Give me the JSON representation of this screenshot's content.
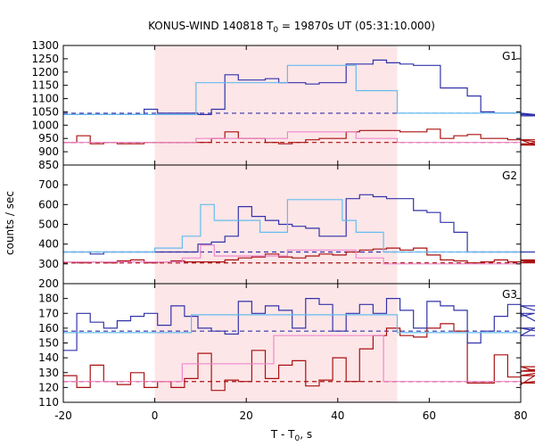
{
  "chart_data": {
    "type": "line",
    "title_main": "KONUS-WIND 140818 T",
    "title_sub": "0",
    "title_rest": " = 19870s UT (05:31:10.000)",
    "xlabel_main": "T - T",
    "xlabel_sub": "0",
    "xlabel_rest": ", s",
    "ylabel": "counts / sec",
    "xlim": [
      -20,
      80
    ],
    "xticks": [
      -20,
      0,
      20,
      40,
      60,
      80
    ],
    "highlight_region": [
      0,
      53
    ],
    "colors": {
      "raw_g1_g2": "#3333aa",
      "raw_sum_g1_g2": "#aa1111",
      "fit": "#66bbee",
      "fit_sum": "#ee88cc",
      "background": "#3333aa",
      "background_sum": "#aa1111",
      "highlight": "#fde6e8"
    },
    "panels": [
      {
        "label": "G1",
        "ylim": [
          850,
          1300
        ],
        "yticks": [
          850,
          900,
          950,
          1000,
          1050,
          1100,
          1150,
          1200,
          1250,
          1300
        ],
        "upper_series": {
          "step": 2.944,
          "start": -20,
          "values": [
            1040,
            1040,
            1040,
            1040,
            1040,
            1040,
            1060,
            1045,
            1045,
            1045,
            1040,
            1060,
            1190,
            1170,
            1170,
            1175,
            1160,
            1160,
            1155,
            1160,
            1160,
            1230,
            1230,
            1245,
            1235,
            1230,
            1225,
            1225,
            1140,
            1140,
            1110,
            1050,
            1045,
            1045,
            1045,
            1040,
            1040,
            1035,
            1035,
            1035
          ]
        },
        "upper_fit": {
          "segments": [
            [
              -20,
              1040
            ],
            [
              9,
              1040
            ],
            [
              9,
              1160
            ],
            [
              29,
              1160
            ],
            [
              29,
              1225
            ],
            [
              44,
              1225
            ],
            [
              44,
              1130
            ],
            [
              53,
              1130
            ],
            [
              53,
              1045
            ],
            [
              80,
              1045
            ]
          ]
        },
        "upper_background": 1045,
        "lower_series": {
          "step": 2.944,
          "start": -20,
          "values": [
            935,
            960,
            930,
            935,
            930,
            930,
            935,
            935,
            935,
            935,
            935,
            950,
            975,
            950,
            950,
            935,
            930,
            935,
            945,
            950,
            950,
            975,
            980,
            980,
            980,
            975,
            975,
            985,
            950,
            960,
            965,
            950,
            950,
            945,
            945,
            925,
            945,
            925,
            925,
            930
          ]
        },
        "lower_fit": {
          "segments": [
            [
              -20,
              935
            ],
            [
              9,
              935
            ],
            [
              9,
              950
            ],
            [
              29,
              950
            ],
            [
              29,
              975
            ],
            [
              44,
              975
            ],
            [
              44,
              950
            ],
            [
              53,
              950
            ],
            [
              53,
              935
            ],
            [
              80,
              935
            ]
          ]
        },
        "lower_background": 935
      },
      {
        "label": "G2",
        "ylim": [
          200,
          800
        ],
        "yticks": [
          200,
          300,
          400,
          500,
          600,
          700
        ],
        "upper_series": {
          "step": 2.944,
          "start": -20,
          "values": [
            360,
            360,
            350,
            360,
            360,
            360,
            360,
            360,
            360,
            360,
            400,
            410,
            440,
            590,
            540,
            520,
            500,
            490,
            480,
            440,
            440,
            630,
            650,
            640,
            630,
            630,
            570,
            560,
            510,
            460,
            360,
            360,
            360,
            360,
            360,
            360,
            360,
            360,
            360,
            360
          ]
        },
        "upper_fit": {
          "segments": [
            [
              -20,
              360
            ],
            [
              0,
              360
            ],
            [
              0,
              380
            ],
            [
              6,
              380
            ],
            [
              6,
              440
            ],
            [
              10,
              440
            ],
            [
              10,
              600
            ],
            [
              13,
              600
            ],
            [
              13,
              520
            ],
            [
              23,
              520
            ],
            [
              23,
              460
            ],
            [
              29,
              460
            ],
            [
              29,
              625
            ],
            [
              41,
              625
            ],
            [
              41,
              520
            ],
            [
              44,
              520
            ],
            [
              44,
              460
            ],
            [
              50,
              460
            ],
            [
              50,
              360
            ],
            [
              80,
              360
            ]
          ]
        },
        "upper_background": 360,
        "lower_series": {
          "step": 2.944,
          "start": -20,
          "values": [
            310,
            305,
            310,
            305,
            315,
            320,
            305,
            310,
            315,
            310,
            310,
            310,
            320,
            330,
            335,
            350,
            335,
            330,
            340,
            350,
            345,
            360,
            370,
            375,
            380,
            370,
            380,
            345,
            320,
            315,
            305,
            310,
            320,
            310,
            305,
            315,
            305,
            320,
            320,
            305
          ]
        },
        "lower_fit": {
          "segments": [
            [
              -20,
              310
            ],
            [
              6,
              310
            ],
            [
              6,
              330
            ],
            [
              10,
              330
            ],
            [
              10,
              395
            ],
            [
              13,
              395
            ],
            [
              13,
              340
            ],
            [
              29,
              340
            ],
            [
              29,
              370
            ],
            [
              44,
              370
            ],
            [
              44,
              330
            ],
            [
              50,
              330
            ],
            [
              50,
              300
            ],
            [
              80,
              300
            ]
          ]
        },
        "lower_background": 305
      },
      {
        "label": "G3",
        "ylim": [
          110,
          190
        ],
        "yticks": [
          110,
          120,
          130,
          140,
          150,
          160,
          170,
          180
        ],
        "upper_series": {
          "step": 2.944,
          "start": -20,
          "values": [
            145,
            170,
            164,
            160,
            165,
            168,
            170,
            162,
            175,
            168,
            160,
            158,
            156,
            178,
            170,
            175,
            172,
            160,
            180,
            176,
            158,
            170,
            176,
            170,
            180,
            172,
            160,
            178,
            175,
            172,
            150,
            158,
            168,
            176,
            168,
            170,
            160,
            155,
            175,
            160
          ]
        },
        "upper_fit": {
          "segments": [
            [
              -20,
              157
            ],
            [
              0,
              157
            ],
            [
              0,
              157
            ],
            [
              8,
              157
            ],
            [
              8,
              169
            ],
            [
              53,
              169
            ],
            [
              53,
              157
            ],
            [
              80,
              157
            ]
          ]
        },
        "upper_background": 158,
        "lower_series": {
          "step": 2.944,
          "start": -20,
          "values": [
            128,
            120,
            135,
            124,
            122,
            130,
            120,
            124,
            120,
            126,
            143,
            118,
            125,
            124,
            145,
            126,
            135,
            138,
            121,
            125,
            140,
            124,
            146,
            155,
            160,
            155,
            154,
            160,
            163,
            158,
            123,
            123,
            142,
            127,
            122,
            128,
            131,
            134,
            123,
            128
          ]
        },
        "lower_fit": {
          "segments": [
            [
              -20,
              124
            ],
            [
              0,
              124
            ],
            [
              0,
              124
            ],
            [
              6,
              124
            ],
            [
              6,
              136
            ],
            [
              26,
              136
            ],
            [
              26,
              155
            ],
            [
              50,
              155
            ],
            [
              50,
              124
            ],
            [
              80,
              124
            ]
          ]
        },
        "lower_background": 124
      }
    ]
  }
}
